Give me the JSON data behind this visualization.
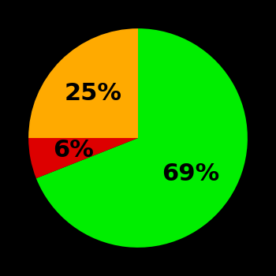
{
  "slices": [
    69,
    6,
    25
  ],
  "labels": [
    "69%",
    "6%",
    "25%"
  ],
  "colors": [
    "#00ee00",
    "#dd0000",
    "#ffaa00"
  ],
  "background_color": "#000000",
  "startangle": 90,
  "counterclock": false,
  "text_color": "#000000",
  "font_size": 22,
  "font_weight": "bold",
  "radial_offsets": [
    0.58,
    0.6,
    0.58
  ]
}
